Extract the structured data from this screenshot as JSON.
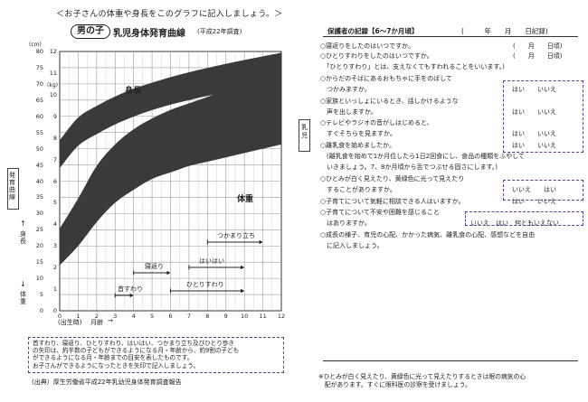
{
  "left_page": {
    "top_note": "＜お子さんの体重や身長をこのグラフに記入しましょう。＞",
    "sex_badge": "男の子",
    "title": "乳児身体発育曲線",
    "subtitle": "(平成22年調査)",
    "height_unit": "(cm)",
    "weight_unit": "(kg)",
    "cm_ticks": [
      "80",
      "75",
      "70",
      "65",
      "60",
      "55",
      "50",
      "45",
      "40",
      "35",
      "30",
      "25",
      "20",
      "15",
      "10",
      "5",
      "0"
    ],
    "kg_ticks": [
      "12",
      "11",
      "10",
      "9",
      "8",
      "7",
      "6",
      "5",
      "4",
      "3",
      "2",
      "1",
      "0"
    ],
    "x_ticks": [
      "0",
      "1",
      "2",
      "3",
      "4",
      "5",
      "6",
      "7",
      "8",
      "9",
      "10",
      "11",
      "12"
    ],
    "x_start_label": "(出生時)",
    "x_axis_label": "月齢",
    "band_labels": {
      "height": "身長",
      "weight": "体重"
    },
    "side_tab_text": "発育曲線",
    "height_axis_side": "身長",
    "weight_axis_side": "体重",
    "milestones": [
      {
        "label": "首すわり",
        "range_months": [
          3,
          4
        ]
      },
      {
        "label": "寝返り",
        "range_months": [
          4,
          6
        ]
      },
      {
        "label": "はいはい",
        "range_months": [
          7,
          10
        ]
      },
      {
        "label": "ひとりすわり",
        "range_months": [
          6,
          10
        ]
      },
      {
        "label": "つかまり立ち",
        "range_months": [
          8,
          11
        ]
      }
    ],
    "note_lines": [
      "首すわり、寝返り、ひとりすわり、はいはい、つかまり立ち及びひとり歩き",
      "の矢印は、約半数の子どもができるようになる月・年齢から、約9割の子ども",
      "ができるようになる月・年齢までの目安を表したものです。",
      "お子さんができるようになったときを矢印で記入しましょう。"
    ],
    "source": "(出典）厚生労働省平成22年乳幼児身体発育調査報告"
  },
  "chart_data": {
    "type": "area",
    "x_unit": "months",
    "x": [
      0,
      1,
      2,
      3,
      4,
      5,
      6,
      7,
      8,
      9,
      10,
      11,
      12
    ],
    "xlim": [
      0,
      12
    ],
    "series": [
      {
        "name": "身長",
        "unit": "cm",
        "ylim": [
          0,
          80
        ],
        "lower": [
          44.0,
          50.9,
          54.5,
          57.5,
          59.9,
          61.9,
          63.6,
          65.0,
          66.3,
          67.4,
          68.4,
          69.4,
          70.3
        ],
        "upper": [
          52.6,
          59.6,
          63.2,
          66.1,
          68.5,
          70.4,
          72.1,
          73.6,
          74.9,
          76.2,
          77.4,
          78.5,
          79.6
        ]
      },
      {
        "name": "体重",
        "unit": "kg",
        "ylim": [
          0,
          12
        ],
        "lower": [
          2.1,
          3.0,
          4.1,
          5.0,
          5.6,
          6.1,
          6.4,
          6.7,
          6.9,
          7.1,
          7.3,
          7.5,
          7.7
        ],
        "upper": [
          3.8,
          5.2,
          6.7,
          7.7,
          8.4,
          8.9,
          9.3,
          9.6,
          9.9,
          10.2,
          10.4,
          10.6,
          10.9
        ]
      }
    ]
  },
  "right_page": {
    "record_title": "保護者の記録【6～7か月頃】",
    "record_date": "(　　　年　　月　　日記録)",
    "side_tab": "乳児",
    "items": [
      {
        "text": "○寝返りをしたのはいつですか。",
        "answer": "(　　月　　日頃)"
      },
      {
        "text": "○ひとりすわりをしたのはいつですか。",
        "answer": "(　　月　　日頃)"
      },
      {
        "text": "　「ひとりすわり」とは、支えなくてもすわれることをいいます。)",
        "answer": ""
      },
      {
        "text": "○からだのそばにあるおもちゃに手をのばして",
        "answer": ""
      },
      {
        "text": "　つかみますか。",
        "answer": "はい　　いいえ"
      },
      {
        "text": "○家族といっしょにいるとき、話しかけるような",
        "answer": ""
      },
      {
        "text": "　声を出しますか。",
        "answer": "はい　　いいえ"
      },
      {
        "text": "○テレビやラジオの音がしはじめると、",
        "answer": ""
      },
      {
        "text": "　すぐそちらを見ますか。",
        "answer": "はい　　いいえ"
      },
      {
        "text": "○離乳食を始めましたか。",
        "answer": "はい　　いいえ"
      },
      {
        "text": "　(離乳食を始めて1か月位したら1日2回食にし、食品の種類をふやして",
        "answer": ""
      },
      {
        "text": "　いきましょう。7、8か月頃から舌でつぶせる固さにします。)",
        "answer": ""
      },
      {
        "text": "○ひとみが白く見えたり、黄緑色に光って見えたり",
        "answer": ""
      },
      {
        "text": "　することがありますか。",
        "answer": "いいえ　　はい"
      },
      {
        "text": "○子育てについて気軽に相談できる人はいますか。",
        "answer": "はい　　いいえ"
      },
      {
        "text": "○子育てについて不安や困難を感じること",
        "answer": ""
      },
      {
        "text": "　はありますか。",
        "answer": "いいえ　はい　何ともいえない"
      },
      {
        "text": "○成長の様子、育児の心配、かかった病気、離乳食の心配、感想などを自由",
        "answer": ""
      },
      {
        "text": "　に記入しましょう。",
        "answer": ""
      }
    ],
    "footer_lines": [
      "※ひとみが白く見えたり、黄緑色に光って見えたりするときは眼の病気の心",
      "　配があります。すぐに眼科医の診察を受けましょう。"
    ]
  }
}
